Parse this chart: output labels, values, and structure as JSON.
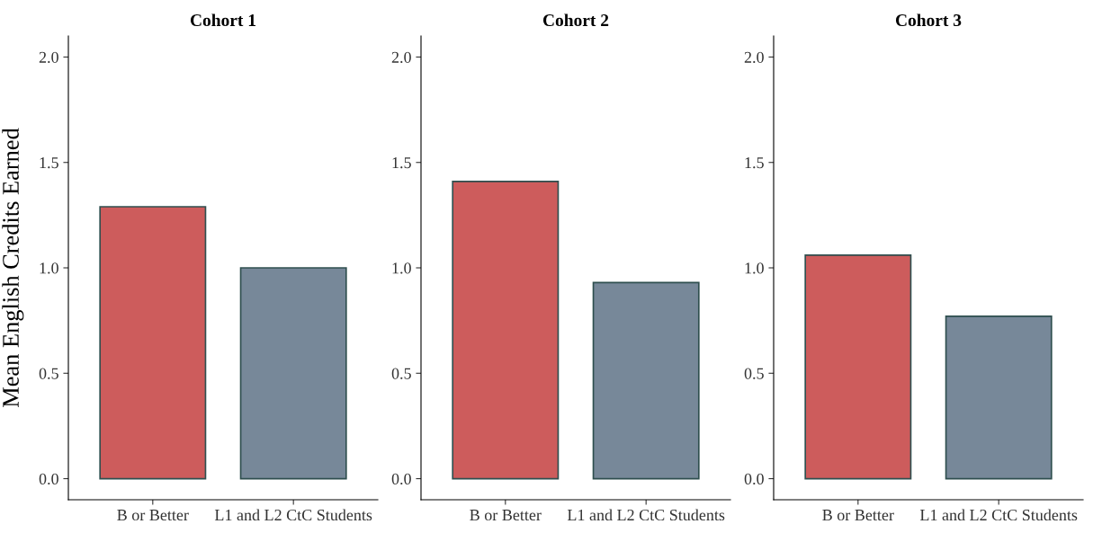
{
  "chart_data": [
    {
      "type": "bar",
      "title": "Cohort 1",
      "ylabel": "Mean English Credits Earned",
      "categories": [
        "B or Better",
        "L1 and L2 CtC Students"
      ],
      "values": [
        1.29,
        1.0
      ],
      "colors": [
        "#cd5c5c",
        "#778899"
      ],
      "ylim": [
        -0.1,
        2.1
      ],
      "yticks": [
        {
          "value": 0,
          "label": "0.0"
        },
        {
          "value": 0.5,
          "label": "0.5"
        },
        {
          "value": 1,
          "label": "1.0"
        },
        {
          "value": 1.5,
          "label": "1.5"
        },
        {
          "value": 2,
          "label": "2.0"
        }
      ],
      "grid": false,
      "legend": false
    },
    {
      "type": "bar",
      "title": "Cohort 2",
      "categories": [
        "B or Better",
        "L1 and L2 CtC Students"
      ],
      "values": [
        1.41,
        0.93
      ],
      "colors": [
        "#cd5c5c",
        "#778899"
      ],
      "ylim": [
        -0.1,
        2.1
      ],
      "yticks": [
        {
          "value": 0,
          "label": "0.0"
        },
        {
          "value": 0.5,
          "label": "0.5"
        },
        {
          "value": 1,
          "label": "1.0"
        },
        {
          "value": 1.5,
          "label": "1.5"
        },
        {
          "value": 2,
          "label": "2.0"
        }
      ],
      "grid": false,
      "legend": false
    },
    {
      "type": "bar",
      "title": "Cohort 3",
      "categories": [
        "B or Better",
        "L1 and L2 CtC Students"
      ],
      "values": [
        1.06,
        0.77
      ],
      "colors": [
        "#cd5c5c",
        "#778899"
      ],
      "ylim": [
        -0.1,
        2.1
      ],
      "yticks": [
        {
          "value": 0,
          "label": "0.0"
        },
        {
          "value": 0.5,
          "label": "0.5"
        },
        {
          "value": 1,
          "label": "1.0"
        },
        {
          "value": 1.5,
          "label": "1.5"
        },
        {
          "value": 2,
          "label": "2.0"
        }
      ],
      "grid": false,
      "legend": false
    }
  ]
}
